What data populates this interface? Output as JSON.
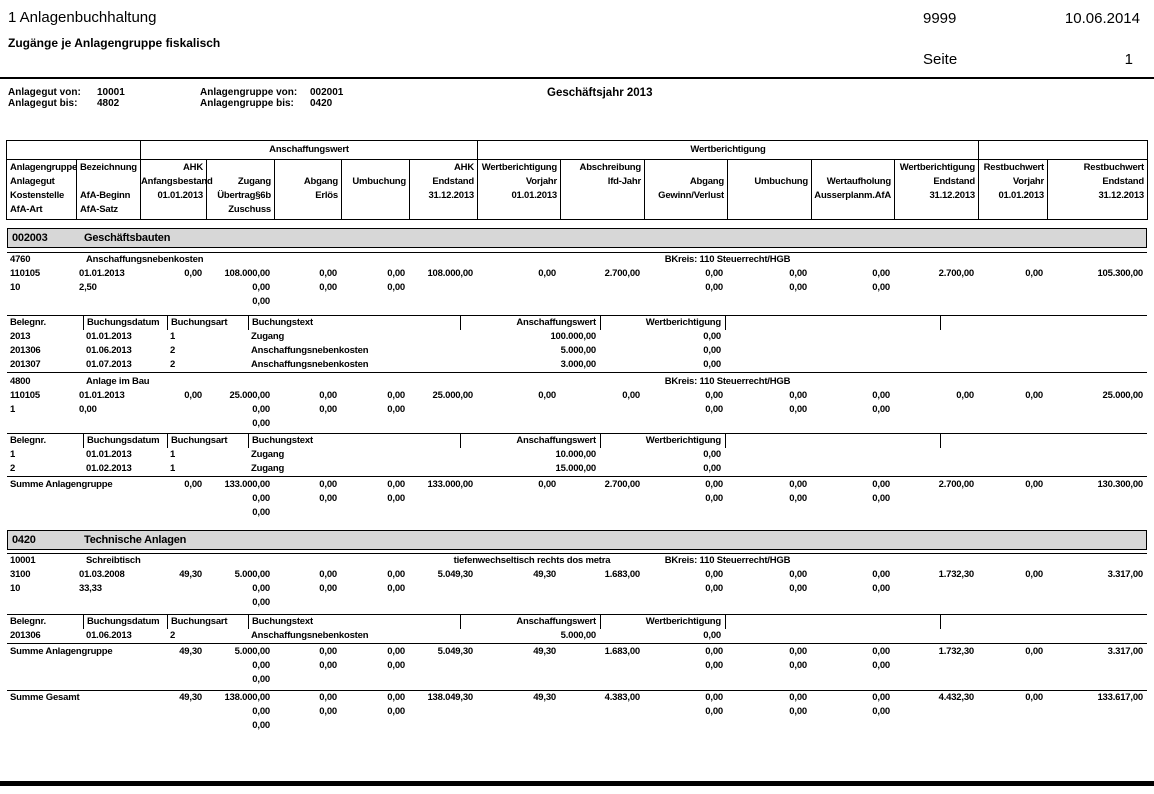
{
  "header": {
    "title": "1 Anlagenbuchhaltung",
    "subtitle": "Zugänge je Anlagengruppe fiskalisch",
    "client_number": "9999",
    "print_date": "10.06.2014",
    "page_label": "Seite",
    "page_number": "1"
  },
  "filters": {
    "anlagegut_von_label": "Anlagegut von:",
    "anlagegut_von": "10001",
    "anlagegut_bis_label": "Anlagegut bis:",
    "anlagegut_bis": "4802",
    "anlagengruppe_von_label": "Anlagengruppe von:",
    "anlagengruppe_von": "002001",
    "anlagengruppe_bis_label": "Anlagengruppe bis:",
    "anlagengruppe_bis": "0420",
    "fiscal_year": "Geschäftsjahr 2013"
  },
  "main_table": {
    "group_header": [
      {
        "label": "",
        "span": 2
      },
      {
        "label": "Anschaffungswert",
        "span": 5
      },
      {
        "label": "Wertberichtigung",
        "span": 6
      },
      {
        "label": "",
        "span": 2
      }
    ],
    "columns": [
      {
        "lines": [
          "Anlagengruppe",
          "Anlagegut",
          "Kostenstelle",
          "AfA-Art"
        ],
        "align": "left"
      },
      {
        "lines": [
          "Bezeichnung",
          "",
          "AfA-Beginn",
          "AfA-Satz"
        ],
        "align": "left"
      },
      {
        "lines": [
          "AHK",
          "Anfangsbestand",
          "01.01.2013",
          ""
        ],
        "align": "right"
      },
      {
        "lines": [
          "",
          "Zugang",
          "Übertrag§6b",
          "Zuschuss"
        ],
        "align": "right"
      },
      {
        "lines": [
          "",
          "Abgang",
          "Erlös",
          ""
        ],
        "align": "right"
      },
      {
        "lines": [
          "",
          "Umbuchung",
          "",
          ""
        ],
        "align": "right"
      },
      {
        "lines": [
          "AHK",
          "Endstand",
          "31.12.2013",
          ""
        ],
        "align": "right"
      },
      {
        "lines": [
          "Wertberichtigung",
          "Vorjahr",
          "01.01.2013",
          ""
        ],
        "align": "right"
      },
      {
        "lines": [
          "Abschreibung",
          "lfd-Jahr",
          "",
          ""
        ],
        "align": "right"
      },
      {
        "lines": [
          "",
          "Abgang",
          "Gewinn/Verlust",
          ""
        ],
        "align": "right"
      },
      {
        "lines": [
          "",
          "Umbuchung",
          "",
          ""
        ],
        "align": "right"
      },
      {
        "lines": [
          "",
          "Wertaufholung",
          "Ausserplanm.AfA",
          ""
        ],
        "align": "right"
      },
      {
        "lines": [
          "Wertberichtigung",
          "Endstand",
          "31.12.2013",
          ""
        ],
        "align": "right"
      },
      {
        "lines": [
          "Restbuchwert",
          "Vorjahr",
          "01.01.2013",
          ""
        ],
        "align": "right"
      },
      {
        "lines": [
          "Restbuchwert",
          "Endstand",
          "31.12.2013",
          ""
        ],
        "align": "right"
      }
    ]
  },
  "subtable_headers": [
    "Belegnr.",
    "Buchungsdatum",
    "Buchungsart",
    "Buchungstext",
    "Anschaffungswert",
    "Wertberichtigung"
  ],
  "blocks": [
    {
      "type": "group",
      "code": "002003",
      "name": "Geschäftsbauten"
    },
    {
      "type": "asset",
      "code": "4760",
      "name": "Anschaffungsnebenkosten",
      "bkreis": "BKreis: 110 Steuerrecht/HGB",
      "rows": [
        [
          "110105",
          "01.01.2013",
          "0,00",
          "108.000,00",
          "0,00",
          "0,00",
          "108.000,00",
          "0,00",
          "2.700,00",
          "0,00",
          "0,00",
          "0,00",
          "2.700,00",
          "0,00",
          "105.300,00"
        ],
        [
          "10",
          "2,50",
          "",
          "0,00",
          "0,00",
          "0,00",
          "",
          "",
          "",
          "0,00",
          "0,00",
          "0,00",
          "",
          "",
          ""
        ],
        [
          "",
          "",
          "",
          "0,00",
          "",
          "",
          "",
          "",
          "",
          "",
          "",
          "",
          "",
          "",
          ""
        ]
      ]
    },
    {
      "type": "subtable",
      "rows": [
        [
          "2013",
          "01.01.2013",
          "1",
          "Zugang",
          "100.000,00",
          "0,00"
        ],
        [
          "201306",
          "01.06.2013",
          "2",
          "Anschaffungsnebenkosten",
          "5.000,00",
          "0,00"
        ],
        [
          "201307",
          "01.07.2013",
          "2",
          "Anschaffungsnebenkosten",
          "3.000,00",
          "0,00"
        ]
      ]
    },
    {
      "type": "asset",
      "code": "4800",
      "name": "Anlage im Bau",
      "bkreis": "BKreis: 110 Steuerrecht/HGB",
      "rows": [
        [
          "110105",
          "01.01.2013",
          "0,00",
          "25.000,00",
          "0,00",
          "0,00",
          "25.000,00",
          "0,00",
          "0,00",
          "0,00",
          "0,00",
          "0,00",
          "0,00",
          "0,00",
          "25.000,00"
        ],
        [
          "1",
          "0,00",
          "",
          "0,00",
          "0,00",
          "0,00",
          "",
          "",
          "",
          "0,00",
          "0,00",
          "0,00",
          "",
          "",
          ""
        ],
        [
          "",
          "",
          "",
          "0,00",
          "",
          "",
          "",
          "",
          "",
          "",
          "",
          "",
          "",
          "",
          ""
        ]
      ]
    },
    {
      "type": "subtable",
      "rows": [
        [
          "1",
          "01.01.2013",
          "1",
          "Zugang",
          "10.000,00",
          "0,00"
        ],
        [
          "2",
          "01.02.2013",
          "1",
          "Zugang",
          "15.000,00",
          "0,00"
        ]
      ]
    },
    {
      "type": "sum",
      "label": "Summe Anlagengruppe",
      "rows": [
        [
          "",
          "",
          "0,00",
          "133.000,00",
          "0,00",
          "0,00",
          "133.000,00",
          "0,00",
          "2.700,00",
          "0,00",
          "0,00",
          "0,00",
          "2.700,00",
          "0,00",
          "130.300,00"
        ],
        [
          "",
          "",
          "",
          "0,00",
          "0,00",
          "0,00",
          "",
          "",
          "",
          "0,00",
          "0,00",
          "0,00",
          "",
          "",
          ""
        ],
        [
          "",
          "",
          "",
          "0,00",
          "",
          "",
          "",
          "",
          "",
          "",
          "",
          "",
          "",
          "",
          ""
        ]
      ]
    },
    {
      "type": "group",
      "code": "0420",
      "name": "Technische Anlagen"
    },
    {
      "type": "asset",
      "code": "10001",
      "name": "Schreibtisch",
      "note": "tiefenwechseltisch rechts dos metra",
      "bkreis": "BKreis: 110 Steuerrecht/HGB",
      "rows": [
        [
          "3100",
          "01.03.2008",
          "49,30",
          "5.000,00",
          "0,00",
          "0,00",
          "5.049,30",
          "49,30",
          "1.683,00",
          "0,00",
          "0,00",
          "0,00",
          "1.732,30",
          "0,00",
          "3.317,00"
        ],
        [
          "10",
          "33,33",
          "",
          "0,00",
          "0,00",
          "0,00",
          "",
          "",
          "",
          "0,00",
          "0,00",
          "0,00",
          "",
          "",
          ""
        ],
        [
          "",
          "",
          "",
          "0,00",
          "",
          "",
          "",
          "",
          "",
          "",
          "",
          "",
          "",
          "",
          ""
        ]
      ]
    },
    {
      "type": "subtable",
      "rows": [
        [
          "201306",
          "01.06.2013",
          "2",
          "Anschaffungsnebenkosten",
          "5.000,00",
          "0,00"
        ]
      ]
    },
    {
      "type": "sum",
      "label": "Summe Anlagengruppe",
      "rows": [
        [
          "",
          "",
          "49,30",
          "5.000,00",
          "0,00",
          "0,00",
          "5.049,30",
          "49,30",
          "1.683,00",
          "0,00",
          "0,00",
          "0,00",
          "1.732,30",
          "0,00",
          "3.317,00"
        ],
        [
          "",
          "",
          "",
          "0,00",
          "0,00",
          "0,00",
          "",
          "",
          "",
          "0,00",
          "0,00",
          "0,00",
          "",
          "",
          ""
        ],
        [
          "",
          "",
          "",
          "0,00",
          "",
          "",
          "",
          "",
          "",
          "",
          "",
          "",
          "",
          "",
          ""
        ]
      ]
    },
    {
      "type": "sum",
      "label": "Summe Gesamt",
      "rows": [
        [
          "",
          "",
          "49,30",
          "138.000,00",
          "0,00",
          "0,00",
          "138.049,30",
          "49,30",
          "4.383,00",
          "0,00",
          "0,00",
          "0,00",
          "4.432,30",
          "0,00",
          "133.617,00"
        ],
        [
          "",
          "",
          "",
          "0,00",
          "0,00",
          "0,00",
          "",
          "",
          "",
          "0,00",
          "0,00",
          "0,00",
          "",
          "",
          ""
        ],
        [
          "",
          "",
          "",
          "0,00",
          "",
          "",
          "",
          "",
          "",
          "",
          "",
          "",
          "",
          "",
          ""
        ]
      ]
    }
  ]
}
